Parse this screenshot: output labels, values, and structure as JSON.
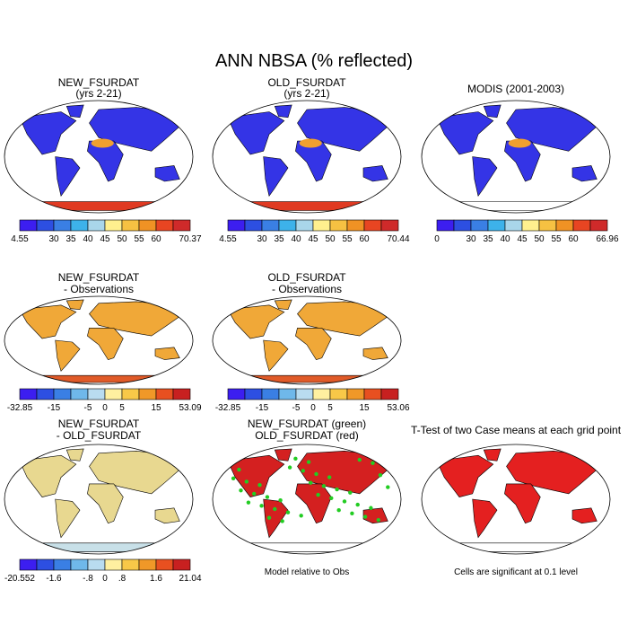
{
  "title": "ANN NBSA (% reflected)",
  "panels": [
    {
      "title": "NEW_FSURDAT",
      "subtitle": "(yrs 2-21)",
      "colorbar": {
        "labels": [
          "4.55",
          "30",
          "35",
          "40",
          "45",
          "50",
          "55",
          "60",
          "70.37"
        ],
        "colors": [
          "#3c1ef0",
          "#2d4fe2",
          "#3a7fe4",
          "#3db2ea",
          "#a9d6ea",
          "#fff08e",
          "#f6c142",
          "#f09224",
          "#e84522",
          "#cf2a2a"
        ]
      }
    },
    {
      "title": "OLD_FSURDAT",
      "subtitle": "(yrs 2-21)",
      "colorbar": {
        "labels": [
          "4.55",
          "30",
          "35",
          "40",
          "45",
          "50",
          "55",
          "60",
          "70.44"
        ],
        "colors": [
          "#3c1ef0",
          "#2d4fe2",
          "#3a7fe4",
          "#3db2ea",
          "#a9d6ea",
          "#fff08e",
          "#f6c142",
          "#f09224",
          "#e84522",
          "#cf2a2a"
        ]
      }
    },
    {
      "title": "MODIS (2001-2003)",
      "colorbar": {
        "labels": [
          "0",
          "30",
          "35",
          "40",
          "45",
          "50",
          "55",
          "60",
          "66.96"
        ],
        "colors": [
          "#3c1ef0",
          "#2d4fe2",
          "#3a7fe4",
          "#3db2ea",
          "#a9d6ea",
          "#fff08e",
          "#f6c142",
          "#f09224",
          "#e84522",
          "#cf2a2a"
        ]
      }
    },
    {
      "title": "NEW_FSURDAT",
      "subtitle": "- Observations",
      "colorbar": {
        "labels": [
          "-32.85",
          "-15",
          "-5",
          "0",
          "5",
          "15",
          "53.09"
        ],
        "colors": [
          "#3c1ef0",
          "#2d4fe2",
          "#3a7fe4",
          "#6fb8ea",
          "#b9dcf0",
          "#fff0a0",
          "#f8c848",
          "#f09828",
          "#e85020",
          "#c82020"
        ]
      }
    },
    {
      "title": "OLD_FSURDAT",
      "subtitle": "- Observations",
      "colorbar": {
        "labels": [
          "-32.85",
          "-15",
          "-5",
          "0",
          "5",
          "15",
          "53.06"
        ],
        "colors": [
          "#3c1ef0",
          "#2d4fe2",
          "#3a7fe4",
          "#6fb8ea",
          "#b9dcf0",
          "#fff0a0",
          "#f8c848",
          "#f09828",
          "#e85020",
          "#c82020"
        ]
      }
    },
    {
      "title": "NEW_FSURDAT",
      "subtitle": "- OLD_FSURDAT",
      "colorbar": {
        "labels": [
          "-20.552",
          "-1.6",
          "-.8",
          "0",
          ".8",
          "1.6",
          "21.04"
        ],
        "colors": [
          "#3c1ef0",
          "#2d4fe2",
          "#3a7fe4",
          "#6fb8ea",
          "#b9dcf0",
          "#fff0a0",
          "#f8c848",
          "#f09828",
          "#e85020",
          "#c82020"
        ]
      }
    },
    {
      "title": "NEW_FSURDAT (green)",
      "subtitle": "OLD_FSURDAT (red)",
      "note": "Model relative to Obs"
    },
    {
      "title": "T-Test of two Case means at each grid point",
      "note": "Cells are significant at 0.1 level"
    }
  ]
}
